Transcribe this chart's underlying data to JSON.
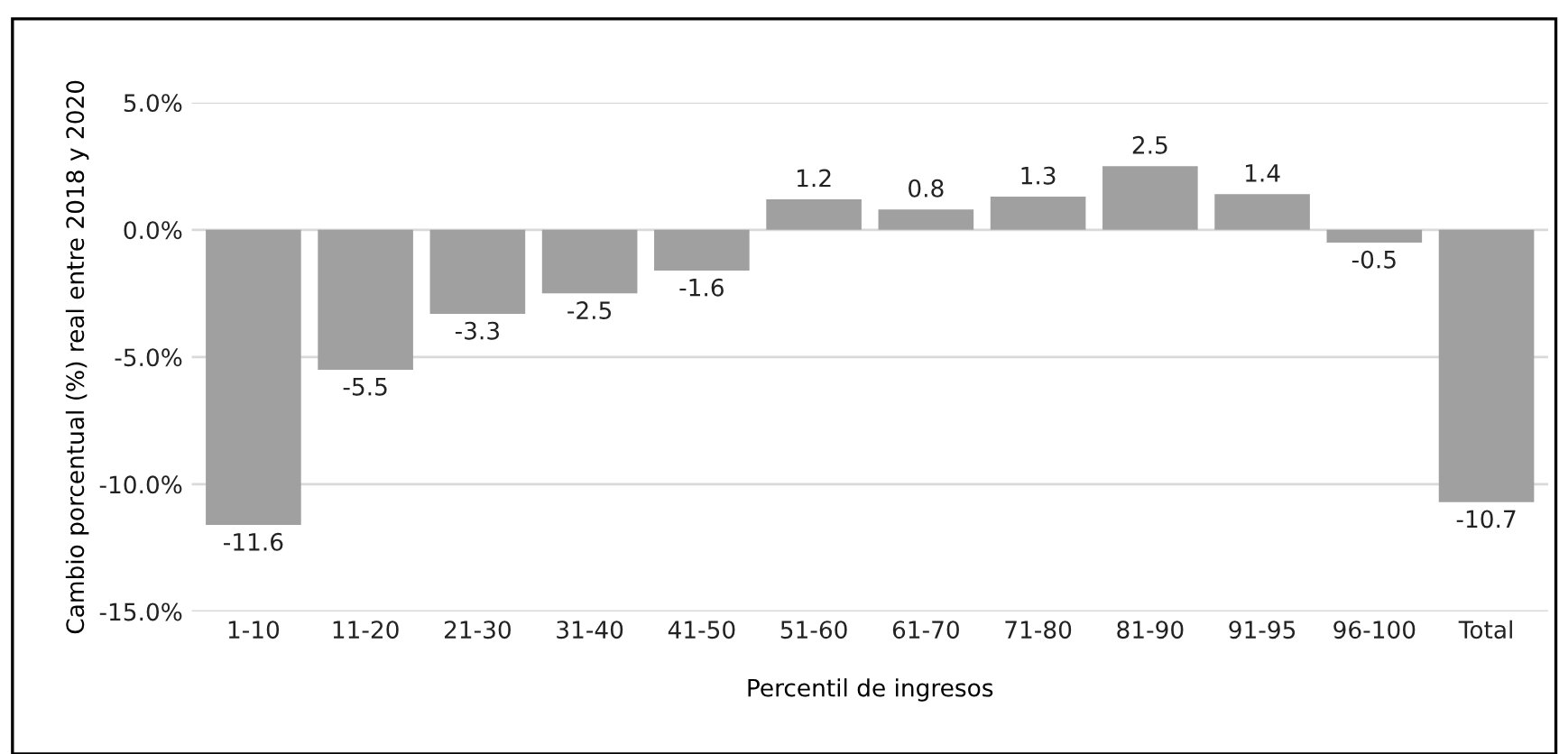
{
  "chart_data": {
    "type": "bar",
    "xlabel": "Percentil de ingresos",
    "ylabel": "Cambio porcentual (%) real entre 2018 y 2020",
    "categories": [
      "1-10",
      "11-20",
      "21-30",
      "31-40",
      "41-50",
      "51-60",
      "61-70",
      "71-80",
      "81-90",
      "91-95",
      "96-100",
      "Total"
    ],
    "values": [
      -11.6,
      -5.5,
      -3.3,
      -2.5,
      -1.6,
      1.2,
      0.8,
      1.3,
      2.5,
      1.4,
      -0.5,
      -10.7
    ],
    "color": "#a0a0a0",
    "ylim": [
      -15,
      5
    ],
    "yticks": [
      {
        "value": -15,
        "label": "-15.0%"
      },
      {
        "value": -10,
        "label": "-10.0%"
      },
      {
        "value": -5,
        "label": "-5.0%"
      },
      {
        "value": 0,
        "label": "0.0%"
      },
      {
        "value": 5,
        "label": "5.0%"
      }
    ],
    "grid": "y",
    "data_labels": true
  }
}
